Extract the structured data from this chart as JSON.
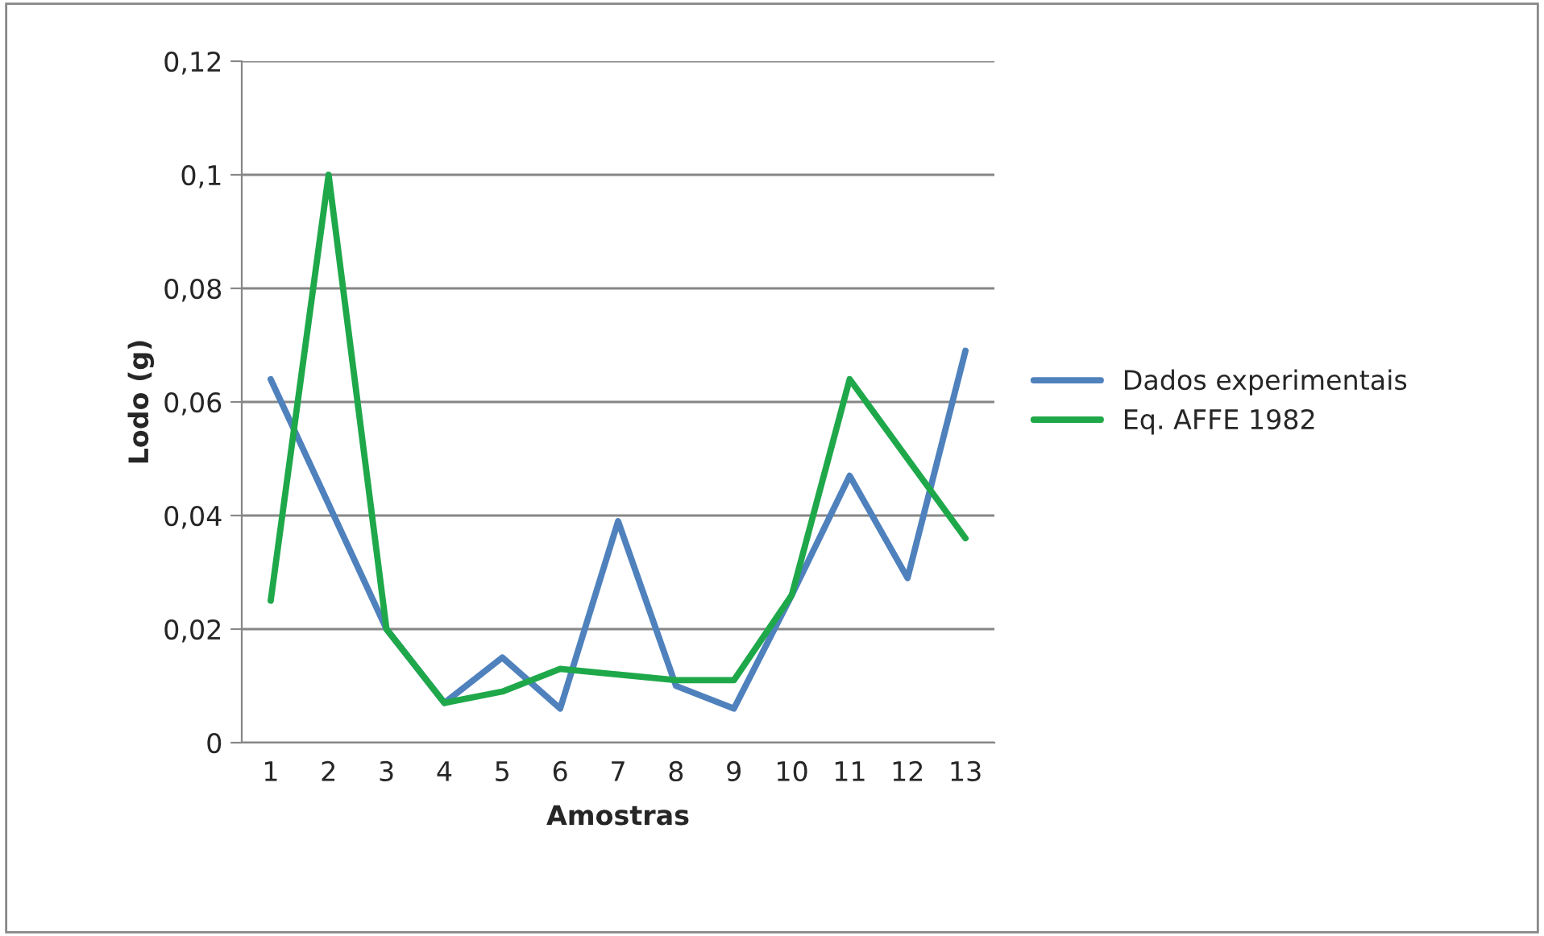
{
  "chart_data": {
    "type": "line",
    "xlabel": "Amostras",
    "ylabel": "Lodo (g)",
    "categories": [
      "1",
      "2",
      "3",
      "4",
      "5",
      "6",
      "7",
      "8",
      "9",
      "10",
      "11",
      "12",
      "13"
    ],
    "series": [
      {
        "name": "Dados experimentais",
        "color": "#4f81bd",
        "values": [
          0.064,
          0.042,
          0.02,
          0.007,
          0.015,
          0.006,
          0.039,
          0.01,
          0.006,
          0.026,
          0.047,
          0.029,
          0.069
        ]
      },
      {
        "name": "Eq. AFFE 1982",
        "color": "#1fa84a",
        "values": [
          0.025,
          0.1,
          0.02,
          0.007,
          0.009,
          0.013,
          0.012,
          0.011,
          0.011,
          0.026,
          0.064,
          0.05,
          0.036
        ]
      }
    ],
    "ylim": [
      0,
      0.12
    ],
    "yticks": [
      {
        "value": 0,
        "label": "0"
      },
      {
        "value": 0.02,
        "label": "0,02"
      },
      {
        "value": 0.04,
        "label": "0,04"
      },
      {
        "value": 0.06,
        "label": "0,06"
      },
      {
        "value": 0.08,
        "label": "0,08"
      },
      {
        "value": 0.1,
        "label": "0,1"
      },
      {
        "value": 0.12,
        "label": "0,12"
      }
    ],
    "grid": "y",
    "legend": "right",
    "marker": "none",
    "line_style": "solid"
  }
}
